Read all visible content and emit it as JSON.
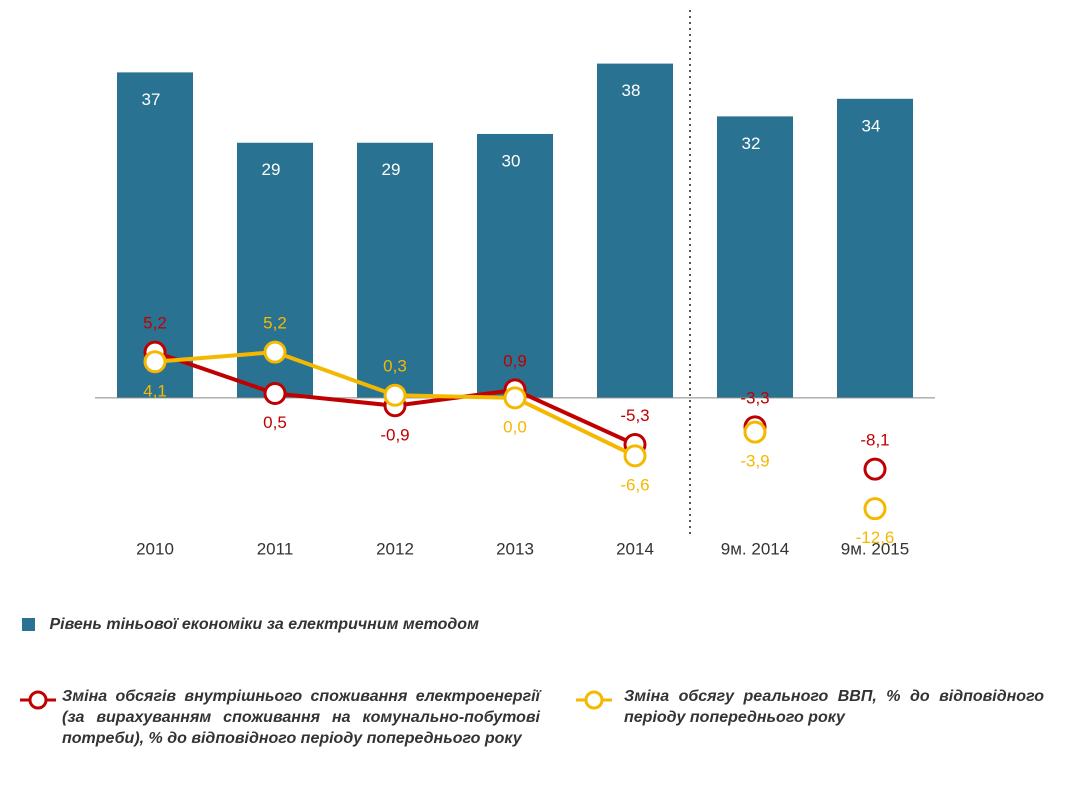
{
  "chart_data": {
    "type": "bar_line",
    "categories": [
      "2010",
      "2011",
      "2012",
      "2013",
      "2014",
      "9м. 2014",
      "9м. 2015"
    ],
    "series": [
      {
        "name": "Рівень тіньової економіки за електричним методом",
        "type": "bar",
        "color": "#2a7291",
        "values": [
          37,
          29,
          29,
          30,
          38,
          32,
          34
        ]
      },
      {
        "name": "Зміна обсягів внутрішнього споживання електроенергії (за вирахуванням споживання на комунально-побутові потреби), % до відповідного періоду попереднього року",
        "type": "line",
        "color": "#c00000",
        "values": [
          5.2,
          0.5,
          -0.9,
          0.9,
          -5.3,
          -3.3,
          -8.1
        ],
        "value_labels": [
          "5,2",
          "0,5",
          "-0,9",
          "0,9",
          "-5,3",
          "-3,3",
          "-8,1"
        ]
      },
      {
        "name": "Зміна обсягу реального ВВП, % до відповідного періоду попереднього року",
        "type": "line",
        "color": "#f5b800",
        "values": [
          4.1,
          5.2,
          0.3,
          0.0,
          -6.6,
          -3.9,
          -12.6
        ],
        "value_labels": [
          "4,1",
          "5,2",
          "0,3",
          "0,0",
          "-6,6",
          "-3,9",
          "-12,6"
        ]
      }
    ],
    "ylim": [
      -14,
      40
    ]
  }
}
